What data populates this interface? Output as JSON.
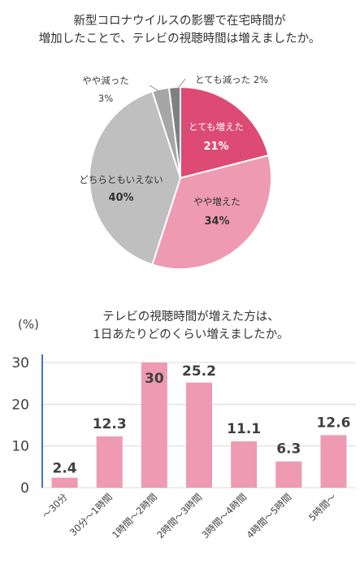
{
  "chart_data": [
    {
      "type": "pie",
      "title_lines": [
        "新型コロナウイルスの影響で在宅時間が",
        "増加したことで、テレビの視聴時間は増えましたか。"
      ],
      "slices": [
        {
          "label": "とても増えた",
          "value": 21,
          "value_label": "21%",
          "color": "#dd4a73"
        },
        {
          "label": "やや増えた",
          "value": 34,
          "value_label": "34%",
          "color": "#ee9ab2"
        },
        {
          "label": "どちらともいえない",
          "value": 40,
          "value_label": "40%",
          "color": "#bfbfbf"
        },
        {
          "label": "やや減った",
          "value": 3,
          "value_label": "3%",
          "color": "#a6a6a6"
        },
        {
          "label": "とても減った",
          "value": 2,
          "value_label": "2%",
          "color": "#808080"
        }
      ],
      "outside_labels": {
        "small_decrease": "やや減った",
        "small_decrease_pct": "3%",
        "large_decrease": "とても減った 2%"
      }
    },
    {
      "type": "bar",
      "title_lines": [
        "テレビの視聴時間が増えた方は、",
        "1日あたりどのくらい増えましたか。"
      ],
      "y_unit": "(%)",
      "categories": [
        "～30分",
        "30分～1時間",
        "1時間～2時間",
        "2時間～3時間",
        "3時間～4時間",
        "4時間～5時間",
        "5時間～"
      ],
      "values": [
        2.4,
        12.3,
        30,
        25.2,
        11.1,
        6.3,
        12.6
      ],
      "value_labels": [
        "2.4",
        "12.3",
        "30",
        "25.2",
        "11.1",
        "6.3",
        "12.6"
      ],
      "ylim": [
        0,
        30
      ],
      "yticks": [
        0,
        10,
        20,
        30
      ],
      "bar_color": "#ee9ab2",
      "axis_color": "#4472c4"
    }
  ]
}
